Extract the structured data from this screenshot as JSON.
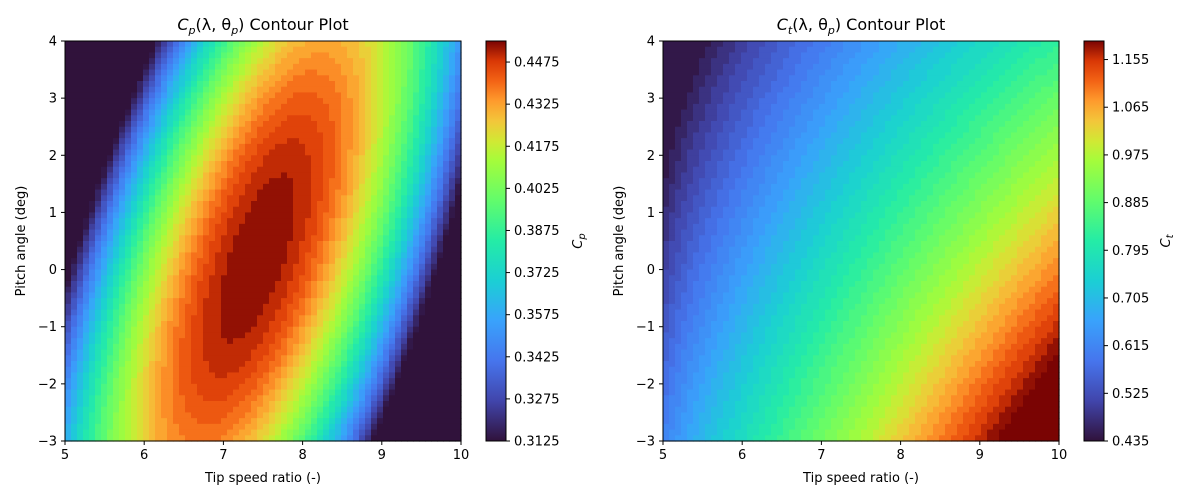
{
  "chart_data": [
    {
      "type": "heatmap",
      "title": "Cₚ(λ, θₚ) Contour Plot",
      "title_main": "C",
      "title_sub": "p",
      "title_rest": "(λ, θ",
      "title_sub2": "p",
      "title_tail": ") Contour Plot",
      "xlabel": "Tip speed ratio (-)",
      "ylabel": "Pitch angle (deg)",
      "xlim": [
        5,
        10
      ],
      "ylim": [
        -3,
        4
      ],
      "x_ticks": [
        "5",
        "6",
        "7",
        "8",
        "9",
        "10"
      ],
      "y_ticks": [
        "−3",
        "−2",
        "−1",
        "0",
        "1",
        "2",
        "3",
        "4"
      ],
      "colorbar_label_main": "C",
      "colorbar_label_sub": "p",
      "colorbar_range": [
        0.3125,
        0.455
      ],
      "colorbar_ticks": [
        "0.3125",
        "0.3275",
        "0.3425",
        "0.3575",
        "0.3725",
        "0.3875",
        "0.4025",
        "0.4175",
        "0.4325",
        "0.4475"
      ],
      "colormap": "turbo",
      "peak": {
        "x": 8.0,
        "y": 0.0,
        "value": 0.455
      }
    },
    {
      "type": "heatmap",
      "title": "Cₜ(λ, θₚ) Contour Plot",
      "title_main": "C",
      "title_sub": "t",
      "title_rest": "(λ, θ",
      "title_sub2": "p",
      "title_tail": ") Contour Plot",
      "xlabel": "Tip speed ratio (-)",
      "ylabel": "Pitch angle (deg)",
      "xlim": [
        5,
        10
      ],
      "ylim": [
        -3,
        4
      ],
      "x_ticks": [
        "5",
        "6",
        "7",
        "8",
        "9",
        "10"
      ],
      "y_ticks": [
        "−3",
        "−2",
        "−1",
        "0",
        "1",
        "2",
        "3",
        "4"
      ],
      "colorbar_label_main": "C",
      "colorbar_label_sub": "t",
      "colorbar_range": [
        0.435,
        1.19
      ],
      "colorbar_ticks": [
        "0.435",
        "0.525",
        "0.615",
        "0.705",
        "0.795",
        "0.885",
        "0.975",
        "1.065",
        "1.155"
      ],
      "colormap": "turbo",
      "corner_values": {
        "x5_y4": 0.435,
        "x10_y-3": 1.19,
        "x5_y-3": 0.6,
        "x10_y4": 0.68
      }
    }
  ]
}
